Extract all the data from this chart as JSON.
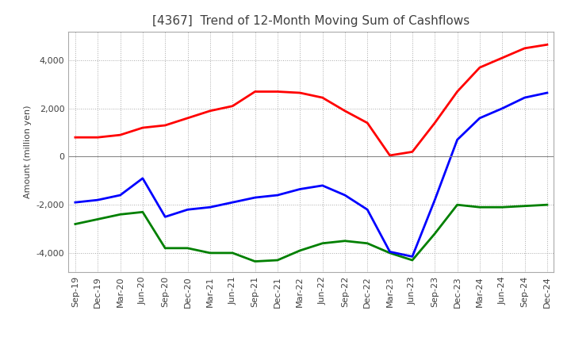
{
  "title": "[4367]  Trend of 12-Month Moving Sum of Cashflows",
  "ylabel": "Amount (million yen)",
  "xlabels": [
    "Sep-19",
    "Dec-19",
    "Mar-20",
    "Jun-20",
    "Sep-20",
    "Dec-20",
    "Mar-21",
    "Jun-21",
    "Sep-21",
    "Dec-21",
    "Mar-22",
    "Jun-22",
    "Sep-22",
    "Dec-22",
    "Mar-23",
    "Jun-23",
    "Sep-23",
    "Dec-23",
    "Mar-24",
    "Jun-24",
    "Sep-24",
    "Dec-24"
  ],
  "ylim": [
    -4800,
    5200
  ],
  "yticks": [
    -4000,
    -2000,
    0,
    2000,
    4000
  ],
  "operating": [
    800,
    800,
    900,
    1200,
    1300,
    1600,
    1900,
    2100,
    2700,
    2700,
    2650,
    2450,
    1900,
    1400,
    50,
    200,
    1400,
    2700,
    3700,
    4100,
    4500,
    4650
  ],
  "investing": [
    -2800,
    -2600,
    -2400,
    -2300,
    -3800,
    -3800,
    -4000,
    -4000,
    -4350,
    -4300,
    -3900,
    -3600,
    -3500,
    -3600,
    -4000,
    -4300,
    -3200,
    -2000,
    -2100,
    -2100,
    -2050,
    -2000
  ],
  "free": [
    -1900,
    -1800,
    -1600,
    -900,
    -2500,
    -2200,
    -2100,
    -1900,
    -1700,
    -1600,
    -1350,
    -1200,
    -1600,
    -2200,
    -3950,
    -4150,
    -1800,
    700,
    1600,
    2000,
    2450,
    2650
  ],
  "operating_color": "#ff0000",
  "investing_color": "#008000",
  "free_color": "#0000ff",
  "background_color": "#ffffff",
  "grid_color": "#aaaaaa",
  "title_color": "#404040",
  "line_width": 2.0,
  "title_fontsize": 11,
  "label_fontsize": 8,
  "ylabel_fontsize": 8
}
